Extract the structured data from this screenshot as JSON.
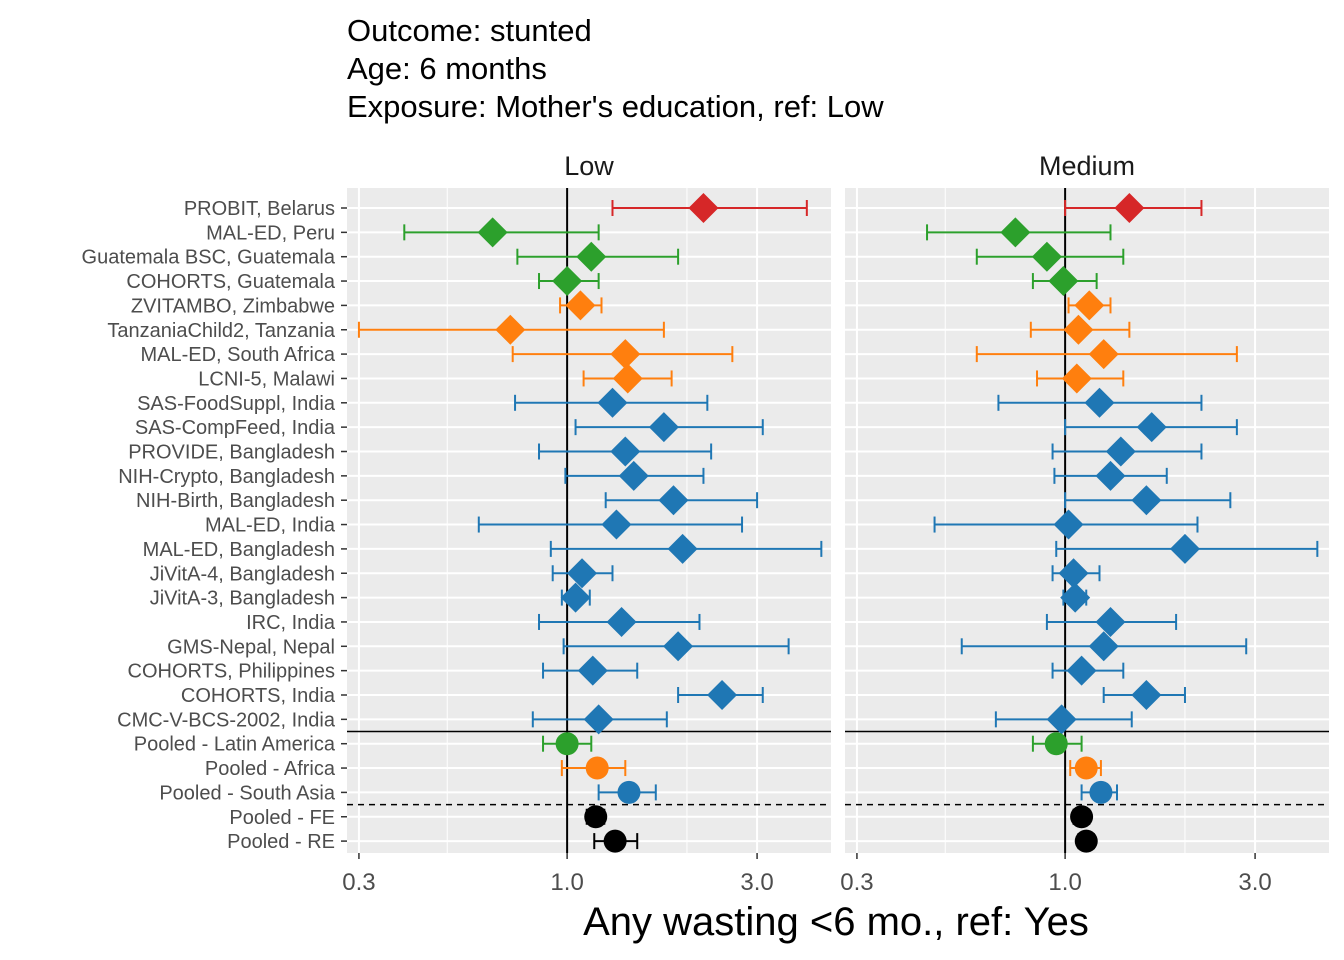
{
  "colors": {
    "red": "#d62728",
    "green": "#2ca02c",
    "orange": "#ff7f0e",
    "blue": "#1f77b4",
    "black": "#000000",
    "panel_bg": "#ebebeb",
    "grid": "#ffffff"
  },
  "chart_data": {
    "type": "forest",
    "title_lines": [
      "Outcome: stunted",
      "Age: 6 months",
      "Exposure: Mother's education, ref: Low"
    ],
    "xlabel": "Any wasting  <6 mo., ref: Yes",
    "x_scale": "log",
    "xlim": [
      0.28,
      4.6
    ],
    "x_ticks": [
      {
        "value": 0.3,
        "label": "0.3"
      },
      {
        "value": 1.0,
        "label": "1.0"
      },
      {
        "value": 3.0,
        "label": "3.0"
      }
    ],
    "ref_line": 1.0,
    "grid": true,
    "panels": [
      {
        "label": "Low",
        "rows": [
          {
            "label": "PROBIT, Belarus",
            "est": 2.2,
            "lo": 1.3,
            "hi": 4.0,
            "color": "red",
            "shape": "diamond"
          },
          {
            "label": "MAL-ED, Peru",
            "est": 0.65,
            "lo": 0.39,
            "hi": 1.2,
            "color": "green",
            "shape": "diamond"
          },
          {
            "label": "Guatemala BSC, Guatemala",
            "est": 1.15,
            "lo": 0.75,
            "hi": 1.9,
            "color": "green",
            "shape": "diamond"
          },
          {
            "label": "COHORTS, Guatemala",
            "est": 1.0,
            "lo": 0.85,
            "hi": 1.2,
            "color": "green",
            "shape": "diamond"
          },
          {
            "label": "ZVITAMBO, Zimbabwe",
            "est": 1.08,
            "lo": 0.96,
            "hi": 1.22,
            "color": "orange",
            "shape": "diamond"
          },
          {
            "label": "TanzaniaChild2, Tanzania",
            "est": 0.72,
            "lo": 0.3,
            "hi": 1.75,
            "color": "orange",
            "shape": "diamond"
          },
          {
            "label": "MAL-ED, South Africa",
            "est": 1.4,
            "lo": 0.73,
            "hi": 2.6,
            "color": "orange",
            "shape": "diamond"
          },
          {
            "label": "LCNI-5, Malawi",
            "est": 1.42,
            "lo": 1.1,
            "hi": 1.83,
            "color": "orange",
            "shape": "diamond"
          },
          {
            "label": "SAS-FoodSuppl, India",
            "est": 1.3,
            "lo": 0.74,
            "hi": 2.25,
            "color": "blue",
            "shape": "diamond"
          },
          {
            "label": "SAS-CompFeed, India",
            "est": 1.75,
            "lo": 1.05,
            "hi": 3.1,
            "color": "blue",
            "shape": "diamond"
          },
          {
            "label": "PROVIDE, Bangladesh",
            "est": 1.4,
            "lo": 0.85,
            "hi": 2.3,
            "color": "blue",
            "shape": "diamond"
          },
          {
            "label": "NIH-Crypto, Bangladesh",
            "est": 1.47,
            "lo": 0.99,
            "hi": 2.2,
            "color": "blue",
            "shape": "diamond"
          },
          {
            "label": "NIH-Birth, Bangladesh",
            "est": 1.85,
            "lo": 1.25,
            "hi": 3.0,
            "color": "blue",
            "shape": "diamond"
          },
          {
            "label": "MAL-ED, India",
            "est": 1.33,
            "lo": 0.6,
            "hi": 2.75,
            "color": "blue",
            "shape": "diamond"
          },
          {
            "label": "MAL-ED, Bangladesh",
            "est": 1.95,
            "lo": 0.91,
            "hi": 4.35,
            "color": "blue",
            "shape": "diamond"
          },
          {
            "label": "JiVitA-4, Bangladesh",
            "est": 1.09,
            "lo": 0.92,
            "hi": 1.3,
            "color": "blue",
            "shape": "diamond"
          },
          {
            "label": "JiVitA-3, Bangladesh",
            "est": 1.05,
            "lo": 0.97,
            "hi": 1.14,
            "color": "blue",
            "shape": "diamond"
          },
          {
            "label": "IRC, India",
            "est": 1.37,
            "lo": 0.85,
            "hi": 2.15,
            "color": "blue",
            "shape": "diamond"
          },
          {
            "label": "GMS-Nepal, Nepal",
            "est": 1.9,
            "lo": 0.98,
            "hi": 3.6,
            "color": "blue",
            "shape": "diamond"
          },
          {
            "label": "COHORTS, Philippines",
            "est": 1.16,
            "lo": 0.87,
            "hi": 1.5,
            "color": "blue",
            "shape": "diamond"
          },
          {
            "label": "COHORTS, India",
            "est": 2.45,
            "lo": 1.9,
            "hi": 3.1,
            "color": "blue",
            "shape": "diamond"
          },
          {
            "label": "CMC-V-BCS-2002, India",
            "est": 1.2,
            "lo": 0.82,
            "hi": 1.78,
            "color": "blue",
            "shape": "diamond"
          },
          {
            "label": "Pooled - Latin America",
            "est": 1.0,
            "lo": 0.87,
            "hi": 1.15,
            "color": "green",
            "shape": "circle"
          },
          {
            "label": "Pooled - Africa",
            "est": 1.19,
            "lo": 0.97,
            "hi": 1.4,
            "color": "orange",
            "shape": "circle"
          },
          {
            "label": "Pooled - South Asia",
            "est": 1.43,
            "lo": 1.2,
            "hi": 1.67,
            "color": "blue",
            "shape": "circle"
          },
          {
            "label": "Pooled - FE",
            "est": 1.18,
            "lo": 1.12,
            "hi": 1.24,
            "color": "black",
            "shape": "circle"
          },
          {
            "label": "Pooled - RE",
            "est": 1.32,
            "lo": 1.17,
            "hi": 1.5,
            "color": "black",
            "shape": "circle"
          }
        ]
      },
      {
        "label": "Medium",
        "rows": [
          {
            "label": "PROBIT, Belarus",
            "est": 1.45,
            "lo": 1.0,
            "hi": 2.2,
            "color": "red",
            "shape": "diamond"
          },
          {
            "label": "MAL-ED, Peru",
            "est": 0.75,
            "lo": 0.45,
            "hi": 1.3,
            "color": "green",
            "shape": "diamond"
          },
          {
            "label": "Guatemala BSC, Guatemala",
            "est": 0.9,
            "lo": 0.6,
            "hi": 1.4,
            "color": "green",
            "shape": "diamond"
          },
          {
            "label": "COHORTS, Guatemala",
            "est": 0.99,
            "lo": 0.83,
            "hi": 1.2,
            "color": "green",
            "shape": "diamond"
          },
          {
            "label": "ZVITAMBO, Zimbabwe",
            "est": 1.15,
            "lo": 1.02,
            "hi": 1.3,
            "color": "orange",
            "shape": "diamond"
          },
          {
            "label": "TanzaniaChild2, Tanzania",
            "est": 1.08,
            "lo": 0.82,
            "hi": 1.45,
            "color": "orange",
            "shape": "diamond"
          },
          {
            "label": "MAL-ED, South Africa",
            "est": 1.25,
            "lo": 0.6,
            "hi": 2.7,
            "color": "orange",
            "shape": "diamond"
          },
          {
            "label": "LCNI-5, Malawi",
            "est": 1.07,
            "lo": 0.85,
            "hi": 1.4,
            "color": "orange",
            "shape": "diamond"
          },
          {
            "label": "SAS-FoodSuppl, India",
            "est": 1.22,
            "lo": 0.68,
            "hi": 2.2,
            "color": "blue",
            "shape": "diamond"
          },
          {
            "label": "SAS-CompFeed, India",
            "est": 1.65,
            "lo": 1.0,
            "hi": 2.7,
            "color": "blue",
            "shape": "diamond"
          },
          {
            "label": "PROVIDE, Bangladesh",
            "est": 1.38,
            "lo": 0.93,
            "hi": 2.2,
            "color": "blue",
            "shape": "diamond"
          },
          {
            "label": "NIH-Crypto, Bangladesh",
            "est": 1.3,
            "lo": 0.94,
            "hi": 1.8,
            "color": "blue",
            "shape": "diamond"
          },
          {
            "label": "NIH-Birth, Bangladesh",
            "est": 1.6,
            "lo": 1.0,
            "hi": 2.6,
            "color": "blue",
            "shape": "diamond"
          },
          {
            "label": "MAL-ED, India",
            "est": 1.02,
            "lo": 0.47,
            "hi": 2.15,
            "color": "blue",
            "shape": "diamond"
          },
          {
            "label": "MAL-ED, Bangladesh",
            "est": 2.0,
            "lo": 0.95,
            "hi": 4.3,
            "color": "blue",
            "shape": "diamond"
          },
          {
            "label": "JiVitA-4, Bangladesh",
            "est": 1.05,
            "lo": 0.93,
            "hi": 1.22,
            "color": "blue",
            "shape": "diamond"
          },
          {
            "label": "JiVitA-3, Bangladesh",
            "est": 1.06,
            "lo": 0.99,
            "hi": 1.13,
            "color": "blue",
            "shape": "diamond"
          },
          {
            "label": "IRC, India",
            "est": 1.3,
            "lo": 0.9,
            "hi": 1.9,
            "color": "blue",
            "shape": "diamond"
          },
          {
            "label": "GMS-Nepal, Nepal",
            "est": 1.25,
            "lo": 0.55,
            "hi": 2.85,
            "color": "blue",
            "shape": "diamond"
          },
          {
            "label": "COHORTS, Philippines",
            "est": 1.1,
            "lo": 0.93,
            "hi": 1.4,
            "color": "blue",
            "shape": "diamond"
          },
          {
            "label": "COHORTS, India",
            "est": 1.6,
            "lo": 1.25,
            "hi": 2.0,
            "color": "blue",
            "shape": "diamond"
          },
          {
            "label": "CMC-V-BCS-2002, India",
            "est": 0.98,
            "lo": 0.67,
            "hi": 1.47,
            "color": "blue",
            "shape": "diamond"
          },
          {
            "label": "Pooled - Latin America",
            "est": 0.95,
            "lo": 0.83,
            "hi": 1.1,
            "color": "green",
            "shape": "circle"
          },
          {
            "label": "Pooled - Africa",
            "est": 1.13,
            "lo": 1.03,
            "hi": 1.23,
            "color": "orange",
            "shape": "circle"
          },
          {
            "label": "Pooled - South Asia",
            "est": 1.23,
            "lo": 1.1,
            "hi": 1.35,
            "color": "blue",
            "shape": "circle"
          },
          {
            "label": "Pooled - FE",
            "est": 1.1,
            "lo": 1.05,
            "hi": 1.15,
            "color": "black",
            "shape": "circle"
          },
          {
            "label": "Pooled - RE",
            "est": 1.13,
            "lo": 1.08,
            "hi": 1.18,
            "color": "black",
            "shape": "circle"
          }
        ]
      }
    ],
    "separators": [
      {
        "between": [
          "CMC-V-BCS-2002, India",
          "Pooled - Latin America"
        ],
        "style": "solid"
      },
      {
        "between": [
          "Pooled - South Asia",
          "Pooled - FE"
        ],
        "style": "dashed"
      }
    ]
  }
}
